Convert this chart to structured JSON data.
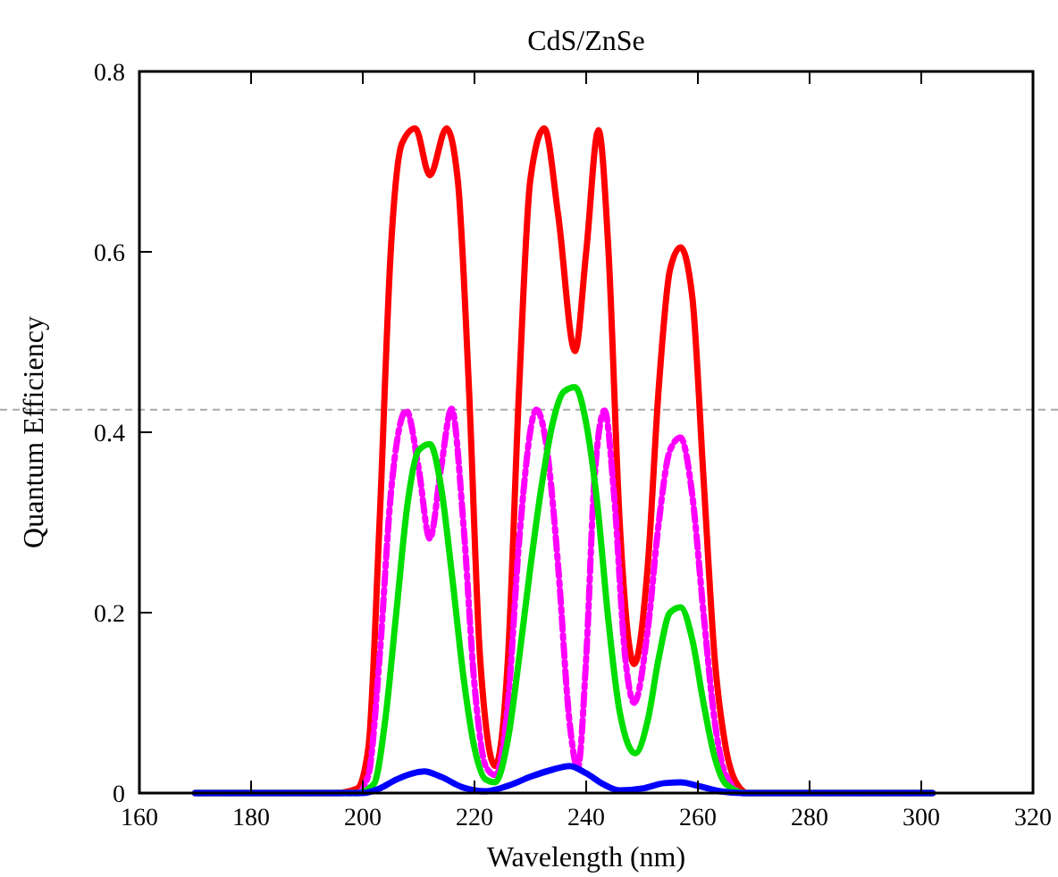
{
  "chart_data": {
    "type": "line",
    "title": "CdS/ZnSe",
    "xlabel": "Wavelength  (nm)",
    "ylabel": "Quantum Efficiency",
    "xlim": [
      160,
      320
    ],
    "xticks": [
      160,
      180,
      200,
      220,
      240,
      260,
      280,
      300,
      320
    ],
    "ylim": [
      0,
      0.8
    ],
    "yticks": [
      0,
      0.2,
      0.4,
      0.6,
      0.8
    ],
    "marker": "none",
    "ref_lines": [
      {
        "axis": "y",
        "value": 0.425,
        "color": "#aaaaaa",
        "line_style": "dashed"
      }
    ],
    "series": [
      {
        "color": "#ff0000",
        "line_style": "solid",
        "x": [
          170,
          195,
          199,
          201,
          203,
          205,
          207,
          209.4,
          212,
          215,
          217,
          219,
          221,
          223.7,
          226,
          228,
          230,
          232.5,
          235,
          238,
          240,
          242.2,
          244,
          246,
          248.6,
          251,
          253,
          255,
          256.9,
          259,
          261,
          263,
          265,
          267,
          269,
          302
        ],
        "values": [
          0,
          0,
          0.005,
          0.05,
          0.3,
          0.6,
          0.72,
          0.737,
          0.685,
          0.737,
          0.68,
          0.45,
          0.15,
          0.03,
          0.15,
          0.45,
          0.68,
          0.737,
          0.64,
          0.49,
          0.6,
          0.735,
          0.6,
          0.3,
          0.143,
          0.25,
          0.45,
          0.58,
          0.605,
          0.55,
          0.35,
          0.15,
          0.05,
          0.01,
          0,
          0
        ]
      },
      {
        "color": "#ff00ff",
        "line_style": "dashed",
        "x": [
          170,
          199,
          201,
          203,
          205,
          207.8,
          210,
          212,
          214,
          215.9,
          218,
          220,
          222,
          223.7,
          226,
          228,
          231.1,
          233,
          235,
          237,
          238.5,
          240,
          241.5,
          243.3,
          245,
          247,
          248.6,
          251,
          253,
          255,
          256.9,
          259,
          261,
          263,
          265,
          268,
          302
        ],
        "values": [
          0,
          0,
          0.02,
          0.15,
          0.33,
          0.424,
          0.36,
          0.282,
          0.36,
          0.426,
          0.3,
          0.12,
          0.03,
          0.02,
          0.1,
          0.28,
          0.425,
          0.38,
          0.25,
          0.08,
          0.028,
          0.15,
          0.35,
          0.424,
          0.33,
          0.15,
          0.1,
          0.18,
          0.3,
          0.38,
          0.394,
          0.33,
          0.2,
          0.08,
          0.02,
          0,
          0
        ]
      },
      {
        "color": "#00dd00",
        "line_style": "solid",
        "x": [
          170,
          199,
          202,
          204,
          206,
          208,
          210,
          212,
          214,
          216,
          218,
          220,
          222,
          223.7,
          226,
          228,
          230,
          232,
          234,
          236,
          238,
          240,
          242,
          244,
          246,
          248.8,
          251,
          253,
          255,
          256.9,
          259,
          261,
          263,
          265,
          268.5,
          302
        ],
        "values": [
          0,
          0,
          0.01,
          0.08,
          0.2,
          0.32,
          0.38,
          0.387,
          0.34,
          0.24,
          0.13,
          0.05,
          0.015,
          0.012,
          0.06,
          0.15,
          0.25,
          0.34,
          0.41,
          0.445,
          0.45,
          0.41,
          0.32,
          0.19,
          0.09,
          0.044,
          0.08,
          0.15,
          0.2,
          0.206,
          0.17,
          0.1,
          0.04,
          0.01,
          0,
          0
        ]
      },
      {
        "color": "#0000ff",
        "line_style": "solid",
        "x": [
          170,
          200,
          203,
          206,
          209,
          211,
          214,
          218,
          222,
          226,
          230,
          234,
          237,
          240,
          243,
          246,
          250,
          254,
          257,
          260,
          264,
          268,
          302
        ],
        "values": [
          0,
          0,
          0.005,
          0.015,
          0.022,
          0.024,
          0.018,
          0.006,
          0.002,
          0.008,
          0.018,
          0.026,
          0.03,
          0.022,
          0.01,
          0.003,
          0.005,
          0.011,
          0.012,
          0.008,
          0.002,
          0,
          0
        ]
      }
    ]
  }
}
